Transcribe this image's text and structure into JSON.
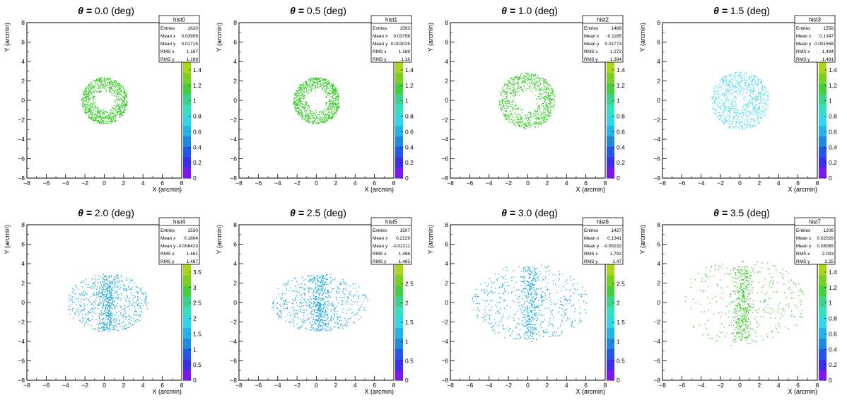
{
  "chart_data": [
    {
      "type": "scatter",
      "theta": "0.0",
      "hist_name": "hist0",
      "title": "θ = 0.0 (deg)",
      "xlabel": "X (arcmin)",
      "ylabel": "Y (arcmin)",
      "xlim": [
        -8,
        8
      ],
      "ylim": [
        -8,
        8
      ],
      "stats": {
        "entries": "1620",
        "mean_x": "0.03905",
        "mean_y": "0.01715",
        "rms_x": "1.167",
        "rms_y": "1.188"
      },
      "colorbar": {
        "max": 1.5,
        "ticks": [
          "0",
          "0.2",
          "0.4",
          "0.6",
          "0.8",
          "1",
          "1.2",
          "1.4"
        ]
      },
      "points_color": "#33cc22",
      "pattern": "ring",
      "center": [
        0,
        0
      ],
      "inner_radius": 0.9,
      "outer_radius": 2.4
    },
    {
      "type": "scatter",
      "theta": "0.5",
      "hist_name": "hist1",
      "title": "θ = 0.5 (deg)",
      "xlabel": "X (arcmin)",
      "ylabel": "Y (arcmin)",
      "xlim": [
        -8,
        8
      ],
      "ylim": [
        -8,
        8
      ],
      "stats": {
        "entries": "1593",
        "mean_x": "0.03756",
        "mean_y": "0.003025",
        "rms_x": "1.169",
        "rms_y": "1.16"
      },
      "colorbar": {
        "max": 1.5,
        "ticks": [
          "0",
          "0.2",
          "0.4",
          "0.6",
          "0.8",
          "1",
          "1.2",
          "1.4"
        ]
      },
      "points_color": "#33cc22",
      "pattern": "ring",
      "center": [
        0,
        0
      ],
      "inner_radius": 0.9,
      "outer_radius": 2.4
    },
    {
      "type": "scatter",
      "theta": "1.0",
      "hist_name": "hist2",
      "title": "θ = 1.0 (deg)",
      "xlabel": "X (arcmin)",
      "ylabel": "Y (arcmin)",
      "xlim": [
        -8,
        8
      ],
      "ylim": [
        -8,
        8
      ],
      "stats": {
        "entries": "1489",
        "mean_x": "-0.1185",
        "mean_y": "0.01773",
        "rms_x": "1.273",
        "rms_y": "1.394"
      },
      "colorbar": {
        "max": 1.5,
        "ticks": [
          "0",
          "0.2",
          "0.4",
          "0.6",
          "0.8",
          "1",
          "1.2",
          "1.4"
        ]
      },
      "points_color": "#33cc22",
      "pattern": "ring",
      "center": [
        -0.1,
        0
      ],
      "inner_radius": 0.9,
      "outer_radius": 2.9
    },
    {
      "type": "scatter",
      "theta": "1.5",
      "hist_name": "hist3",
      "title": "θ = 1.5 (deg)",
      "xlabel": "X (arcmin)",
      "ylabel": "Y (arcmin)",
      "xlim": [
        -8,
        8
      ],
      "ylim": [
        -8,
        8
      ],
      "stats": {
        "entries": "1556",
        "mean_x": "0.1347",
        "mean_y": "0.001558",
        "rms_x": "1.494",
        "rms_y": "1.491"
      },
      "colorbar": {
        "max": 1.5,
        "ticks": [
          "0",
          "0.2",
          "0.4",
          "0.6",
          "0.8",
          "1",
          "1.2",
          "1.4"
        ]
      },
      "points_color": "#55ddee",
      "pattern": "ring",
      "center": [
        0,
        0
      ],
      "inner_radius": 0.3,
      "outer_radius": 3.0
    },
    {
      "type": "scatter",
      "theta": "2.0",
      "hist_name": "hist4",
      "title": "θ = 2.0 (deg)",
      "xlabel": "X (arcmin)",
      "ylabel": "Y (arcmin)",
      "xlim": [
        -8,
        8
      ],
      "ylim": [
        -8,
        8
      ],
      "stats": {
        "entries": "1530",
        "mean_x": "0.1864",
        "mean_y": "-0.006423",
        "rms_x": "1.461",
        "rms_y": "1.487"
      },
      "colorbar": {
        "max": 3.75,
        "ticks": [
          "0",
          "0.5",
          "1",
          "1.5",
          "2",
          "2.5",
          "3",
          "3.5"
        ]
      },
      "points_color": "#1aa8e0",
      "pattern": "ellipse",
      "center": [
        0.3,
        0
      ],
      "rx": 4.2,
      "ry": 3.0
    },
    {
      "type": "scatter",
      "theta": "2.5",
      "hist_name": "hist5",
      "title": "θ = 2.5 (deg)",
      "xlabel": "X (arcmin)",
      "ylabel": "Y (arcmin)",
      "xlim": [
        -8,
        8
      ],
      "ylim": [
        -8,
        8
      ],
      "stats": {
        "entries": "1507",
        "mean_x": "0.2229",
        "mean_y": "-0.02211",
        "rms_x": "1.496",
        "rms_y": "1.465"
      },
      "colorbar": {
        "max": 3.0,
        "ticks": [
          "0",
          "0.5",
          "1",
          "1.5",
          "2",
          "2.5"
        ]
      },
      "points_color": "#1aa8e0",
      "pattern": "ellipse",
      "center": [
        0.3,
        0
      ],
      "rx": 5.0,
      "ry": 3.0
    },
    {
      "type": "scatter",
      "theta": "3.0",
      "hist_name": "hist6",
      "title": "θ = 3.0 (deg)",
      "xlabel": "X (arcmin)",
      "ylabel": "Y (arcmin)",
      "xlim": [
        -8,
        8
      ],
      "ylim": [
        -8,
        8
      ],
      "stats": {
        "entries": "1427",
        "mean_x": "0.1341",
        "mean_y": "-0.05232",
        "rms_x": "1.792",
        "rms_y": "1.47"
      },
      "colorbar": {
        "max": 3.0,
        "ticks": [
          "0",
          "0.5",
          "1",
          "1.5",
          "2",
          "2.5"
        ]
      },
      "points_color": "#1aa8e0",
      "pattern": "ellipse",
      "center": [
        0.2,
        0
      ],
      "rx": 6.0,
      "ry": 4.0
    },
    {
      "type": "scatter",
      "theta": "3.5",
      "hist_name": "hist7",
      "title": "θ = 3.5 (deg)",
      "xlabel": "X (arcmin)",
      "ylabel": "Y (arcmin)",
      "xlim": [
        -8,
        8
      ],
      "ylim": [
        -8,
        8
      ],
      "stats": {
        "entries": "1206",
        "mean_x": "0.02028",
        "mean_y": "0.08085",
        "rms_x": "2.033",
        "rms_y": "2.25"
      },
      "colorbar": {
        "max": 1.5,
        "ticks": [
          "0",
          "0.2",
          "0.4",
          "0.6",
          "0.8",
          "1",
          "1.2",
          "1.4"
        ]
      },
      "points_color": "#33cc22",
      "pattern": "diffuse",
      "center": [
        0.3,
        0
      ],
      "rx": 6.5,
      "ry": 4.5
    }
  ],
  "stat_labels": {
    "entries": "Entries",
    "mean_x": "Mean x",
    "mean_y": "Mean y",
    "rms_x": "RMS x",
    "rms_y": "RMS y"
  },
  "axis_ticks": [
    "−8",
    "−6",
    "−4",
    "−2",
    "0",
    "2",
    "4",
    "6",
    "8"
  ],
  "title_prefix": "θ",
  "title_suffix": "(deg)"
}
